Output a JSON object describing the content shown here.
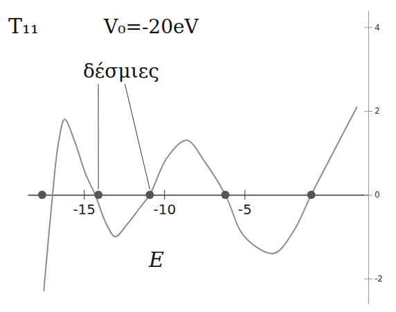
{
  "chart_data": {
    "type": "line",
    "title": "T₁₁",
    "xlabel": "E",
    "x": [
      -17.5,
      -17.0,
      -16.6,
      -16.2,
      -15.6,
      -14.9,
      -14.3,
      -13.6,
      -13.05,
      -12.3,
      -11.5,
      -10.9,
      -9.8,
      -8.6,
      -7.5,
      -6.2,
      -5.0,
      -3.2,
      -2.0,
      -0.85,
      0.5,
      2.0
    ],
    "values": [
      -2.3,
      -0.2,
      1.2,
      1.8,
      1.3,
      0.5,
      0.0,
      -0.7,
      -1.0,
      -0.7,
      -0.3,
      0.0,
      0.9,
      1.3,
      0.8,
      0.0,
      -1.0,
      -1.4,
      -0.9,
      0.0,
      1.0,
      2.1
    ],
    "color": "#8c8c8c",
    "points": {
      "x": [
        -17.6,
        -14.1,
        -10.9,
        -6.2,
        -0.85
      ],
      "values": [
        0,
        0,
        0,
        0,
        0
      ],
      "color": "#555555",
      "marker": "circle"
    },
    "annotations": [
      {
        "text": "V₀=-20eV"
      },
      {
        "text": "δέσμιες",
        "x": [
          -14.1,
          -10.9
        ]
      }
    ],
    "xlim": [
      -18.5,
      2.7
    ],
    "ylim": [
      -2.6,
      4.4
    ],
    "xticks": [
      -15,
      -10,
      -5
    ],
    "yticks": [
      -2,
      0,
      2,
      4
    ],
    "grid": false
  }
}
